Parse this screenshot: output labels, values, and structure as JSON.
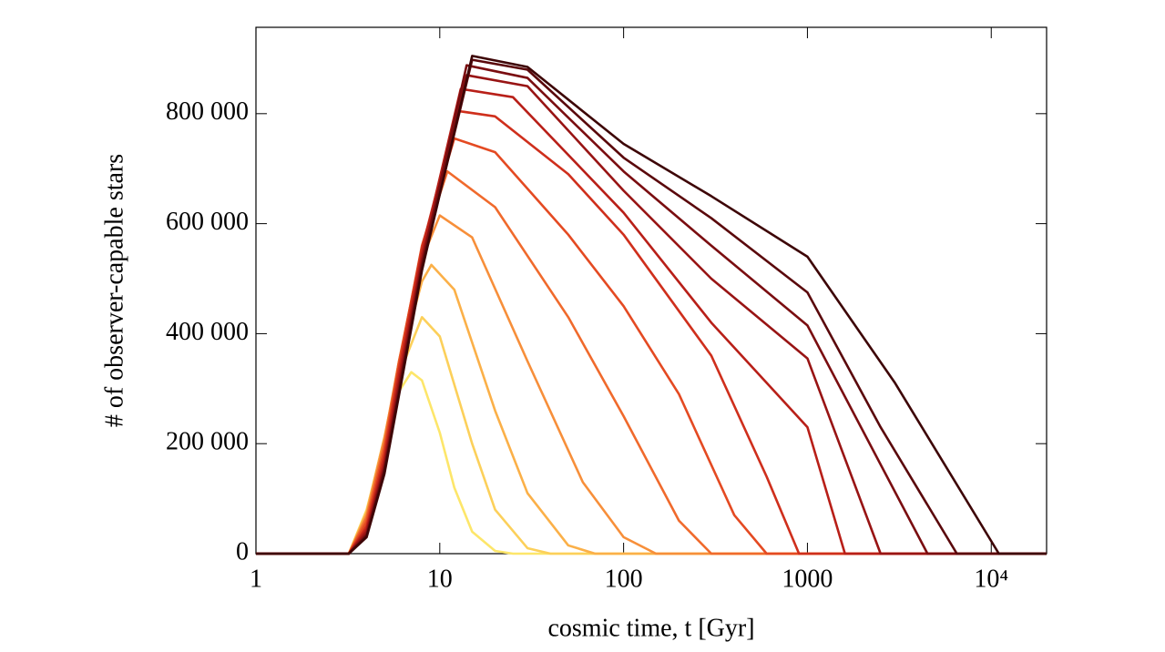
{
  "chart_data": {
    "type": "line",
    "xlabel": "cosmic time, t [Gyr]",
    "ylabel": "# of observer-capable stars",
    "xscale": "log",
    "xlim": [
      1,
      20000
    ],
    "ylim": [
      0,
      957000
    ],
    "xticks": [
      1,
      10,
      100,
      1000,
      {
        "value": 10000,
        "label": "10⁴"
      }
    ],
    "yticks": [
      0,
      {
        "value": 200000,
        "label": "200 000"
      },
      {
        "value": 400000,
        "label": "400 000"
      },
      {
        "value": 600000,
        "label": "600 000"
      },
      {
        "value": 800000,
        "label": "800 000"
      }
    ],
    "series": [
      {
        "color": "#fde66a",
        "x": [
          1,
          3.2,
          4,
          5,
          6,
          7,
          8,
          10,
          12,
          15,
          20,
          25,
          20000
        ],
        "values": [
          0,
          0,
          80000,
          200000,
          295000,
          330000,
          315000,
          220000,
          120000,
          40000,
          5000,
          0,
          0
        ]
      },
      {
        "color": "#fcd05a",
        "x": [
          1,
          3.2,
          4,
          5,
          6,
          8,
          10,
          15,
          20,
          30,
          40,
          20000
        ],
        "values": [
          0,
          0,
          78000,
          210000,
          325000,
          430000,
          395000,
          200000,
          80000,
          10000,
          0,
          0
        ]
      },
      {
        "color": "#fbb048",
        "x": [
          1,
          3.2,
          4,
          5,
          6,
          8,
          9,
          12,
          20,
          30,
          50,
          70,
          20000
        ],
        "values": [
          0,
          0,
          75000,
          212000,
          340000,
          495000,
          525000,
          480000,
          260000,
          110000,
          15000,
          0,
          0
        ]
      },
      {
        "color": "#f78f3a",
        "x": [
          1,
          3.2,
          4,
          5,
          6,
          8,
          10,
          15,
          30,
          60,
          100,
          150,
          20000
        ],
        "values": [
          0,
          0,
          70000,
          208000,
          350000,
          535000,
          615000,
          575000,
          350000,
          130000,
          30000,
          0,
          0
        ]
      },
      {
        "color": "#f06a2c",
        "x": [
          1,
          3.2,
          4,
          5,
          6,
          8,
          11,
          20,
          50,
          100,
          200,
          300,
          20000
        ],
        "values": [
          0,
          0,
          65000,
          200000,
          350000,
          555000,
          695000,
          630000,
          430000,
          250000,
          60000,
          0,
          0
        ]
      },
      {
        "color": "#e44a22",
        "x": [
          1,
          3.2,
          4,
          5,
          6,
          8,
          12,
          20,
          50,
          100,
          200,
          400,
          600,
          20000
        ],
        "values": [
          0,
          0,
          58000,
          190000,
          345000,
          560000,
          755000,
          730000,
          580000,
          450000,
          290000,
          70000,
          0,
          0
        ]
      },
      {
        "color": "#cf2f1c",
        "x": [
          1,
          3.2,
          4,
          5,
          6,
          8,
          12.5,
          20,
          50,
          100,
          300,
          600,
          900,
          20000
        ],
        "values": [
          0,
          0,
          50000,
          180000,
          335000,
          555000,
          805000,
          795000,
          690000,
          580000,
          360000,
          140000,
          0,
          0
        ]
      },
      {
        "color": "#b81f18",
        "x": [
          1,
          3.2,
          4,
          5,
          6,
          8,
          13,
          25,
          100,
          300,
          1000,
          1600,
          20000
        ],
        "values": [
          0,
          0,
          45000,
          170000,
          322000,
          545000,
          845000,
          830000,
          620000,
          420000,
          230000,
          0,
          0
        ]
      },
      {
        "color": "#981414",
        "x": [
          1,
          3.2,
          4,
          5,
          6,
          8,
          14,
          30,
          100,
          300,
          1000,
          2500,
          20000
        ],
        "values": [
          0,
          0,
          40000,
          162000,
          310000,
          535000,
          870000,
          850000,
          660000,
          500000,
          355000,
          0,
          0
        ]
      },
      {
        "color": "#7a0d10",
        "x": [
          1,
          3.2,
          4,
          5,
          6,
          8,
          14,
          30,
          100,
          300,
          1000,
          4500,
          20000
        ],
        "values": [
          0,
          0,
          35000,
          155000,
          300000,
          527000,
          888000,
          865000,
          695000,
          560000,
          415000,
          0,
          0
        ]
      },
      {
        "color": "#5a080b",
        "x": [
          1,
          3.2,
          4,
          5,
          6,
          8,
          15,
          30,
          100,
          300,
          1000,
          2500,
          6500,
          20000
        ],
        "values": [
          0,
          0,
          32000,
          150000,
          293000,
          520000,
          898000,
          880000,
          720000,
          610000,
          475000,
          230000,
          0,
          0
        ]
      },
      {
        "color": "#3d0506",
        "x": [
          1,
          3.2,
          4,
          5,
          6,
          8,
          15,
          30,
          100,
          300,
          1000,
          3000,
          11000,
          20000
        ],
        "values": [
          0,
          0,
          30000,
          145000,
          288000,
          515000,
          905000,
          885000,
          745000,
          650000,
          540000,
          310000,
          0,
          0
        ]
      }
    ]
  }
}
